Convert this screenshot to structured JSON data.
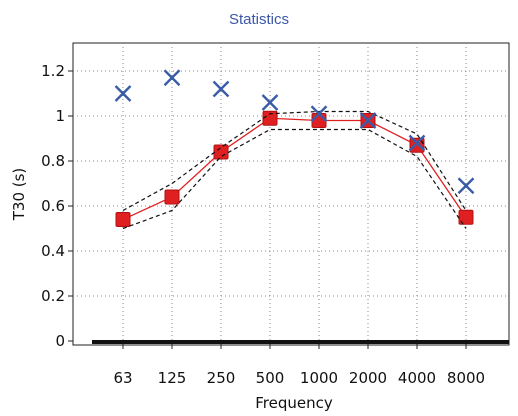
{
  "chart_data": {
    "type": "line",
    "title": "Statistics",
    "xlabel": "Frequency",
    "ylabel": "T30 (s)",
    "categories": [
      "63",
      "125",
      "250",
      "500",
      "1000",
      "2000",
      "4000",
      "8000"
    ],
    "ylim": [
      0,
      1.35
    ],
    "yticks": [
      0,
      0.2,
      0.4,
      0.6,
      0.8,
      1,
      1.2
    ],
    "ytick_labels": [
      "0",
      "0.2",
      "0.4",
      "0.6",
      "0.8",
      "1",
      "1.2"
    ],
    "grid": true,
    "series": [
      {
        "values": [
          0.54,
          0.64,
          0.84,
          0.99,
          0.98,
          0.98,
          0.87,
          0.55
        ],
        "color": "#e02020",
        "marker": "square",
        "line": "solid"
      },
      {
        "values": [
          0.5,
          0.58,
          0.82,
          0.94,
          0.94,
          0.94,
          0.82,
          0.5
        ],
        "color": "#111111",
        "marker": "none",
        "line": "dashed"
      },
      {
        "values": [
          0.58,
          0.7,
          0.86,
          1.01,
          1.02,
          1.02,
          0.92,
          0.58
        ],
        "color": "#111111",
        "marker": "none",
        "line": "dashed"
      },
      {
        "values": [
          1.1,
          1.17,
          1.12,
          1.06,
          1.01,
          0.98,
          0.88,
          0.69
        ],
        "color": "#3a5ca8",
        "marker": "x",
        "line": "none"
      }
    ]
  }
}
